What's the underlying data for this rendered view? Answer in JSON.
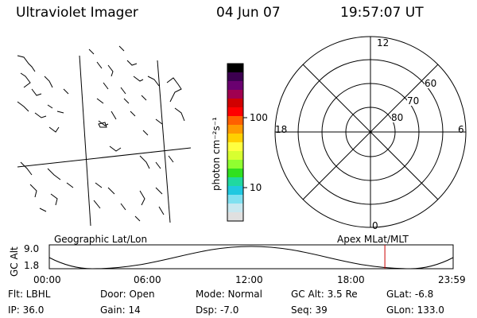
{
  "header": {
    "title": "Ultraviolet Imager",
    "date": "04 Jun 07",
    "time": "19:57:07 UT"
  },
  "colorbar": {
    "unit_label": "photon cm⁻²s⁻¹",
    "tick_labels": [
      "100",
      "10"
    ],
    "colors": [
      "#000000",
      "#3c0050",
      "#6a0070",
      "#a00050",
      "#d00000",
      "#ff0000",
      "#ff6000",
      "#ff9a00",
      "#ffd000",
      "#ffff40",
      "#d8ff30",
      "#90ff30",
      "#30e020",
      "#20d8a0",
      "#20c8e0",
      "#80e0f0",
      "#c8e8f0",
      "#e0e0e0"
    ]
  },
  "polar_plot": {
    "mlt_labels": {
      "top": "12",
      "bottom": "0",
      "left": "18",
      "right": "6"
    },
    "lat_labels": [
      "60",
      "70",
      "80"
    ]
  },
  "timeline": {
    "left_label": "Geographic Lat/Lon",
    "right_label": "Apex  MLat/MLT",
    "axis_label": "GC Alt",
    "y_ticks": [
      "9.0",
      "1.8"
    ],
    "time_ticks": [
      "00:00",
      "06:00",
      "12:00",
      "18:00",
      "23:59"
    ],
    "current_time_fraction": 0.831,
    "marker_color": "#cc0000"
  },
  "footer": {
    "row1": {
      "filter": "Flt: LBHL",
      "door": "Door: Open",
      "mode": "Mode: Normal",
      "gc_alt": "GC Alt: 3.5 Re",
      "glat": "GLat:   -6.8"
    },
    "row2": {
      "ip": "IP: 36.0",
      "gain": "Gain: 14",
      "dsp": "Dsp:   -7.0",
      "seq": "Seq: 39",
      "glon": "GLon: 133.0"
    }
  }
}
